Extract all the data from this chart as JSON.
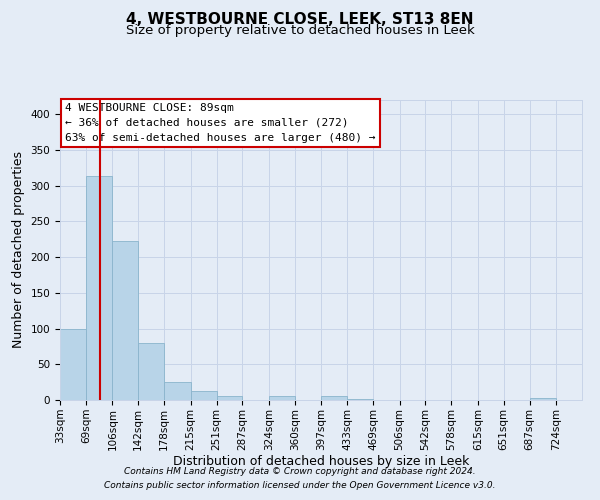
{
  "title": "4, WESTBOURNE CLOSE, LEEK, ST13 8EN",
  "subtitle": "Size of property relative to detached houses in Leek",
  "xlabel": "Distribution of detached houses by size in Leek",
  "ylabel": "Number of detached properties",
  "footnote1": "Contains HM Land Registry data © Crown copyright and database right 2024.",
  "footnote2": "Contains public sector information licensed under the Open Government Licence v3.0.",
  "annotation_title": "4 WESTBOURNE CLOSE: 89sqm",
  "annotation_line1": "← 36% of detached houses are smaller (272)",
  "annotation_line2": "63% of semi-detached houses are larger (480) →",
  "bar_color": "#b8d4e8",
  "bar_edge_color": "#8ab4cc",
  "vline_color": "#cc0000",
  "vline_x": 89,
  "bin_edges": [
    33,
    69,
    106,
    142,
    178,
    215,
    251,
    287,
    324,
    360,
    397,
    433,
    469,
    506,
    542,
    578,
    615,
    651,
    687,
    724,
    760
  ],
  "bar_heights": [
    100,
    313,
    222,
    80,
    25,
    13,
    5,
    0,
    5,
    0,
    5,
    2,
    0,
    0,
    0,
    0,
    0,
    0,
    3,
    0
  ],
  "ylim": [
    0,
    420
  ],
  "yticks": [
    0,
    50,
    100,
    150,
    200,
    250,
    300,
    350,
    400
  ],
  "grid_color": "#c8d4e8",
  "bg_color": "#e4ecf6",
  "annotation_box_color": "#ffffff",
  "annotation_box_edge": "#cc0000",
  "title_fontsize": 11,
  "subtitle_fontsize": 9.5,
  "axis_label_fontsize": 9,
  "tick_fontsize": 7.5,
  "annotation_fontsize": 8,
  "footnote_fontsize": 6.5
}
